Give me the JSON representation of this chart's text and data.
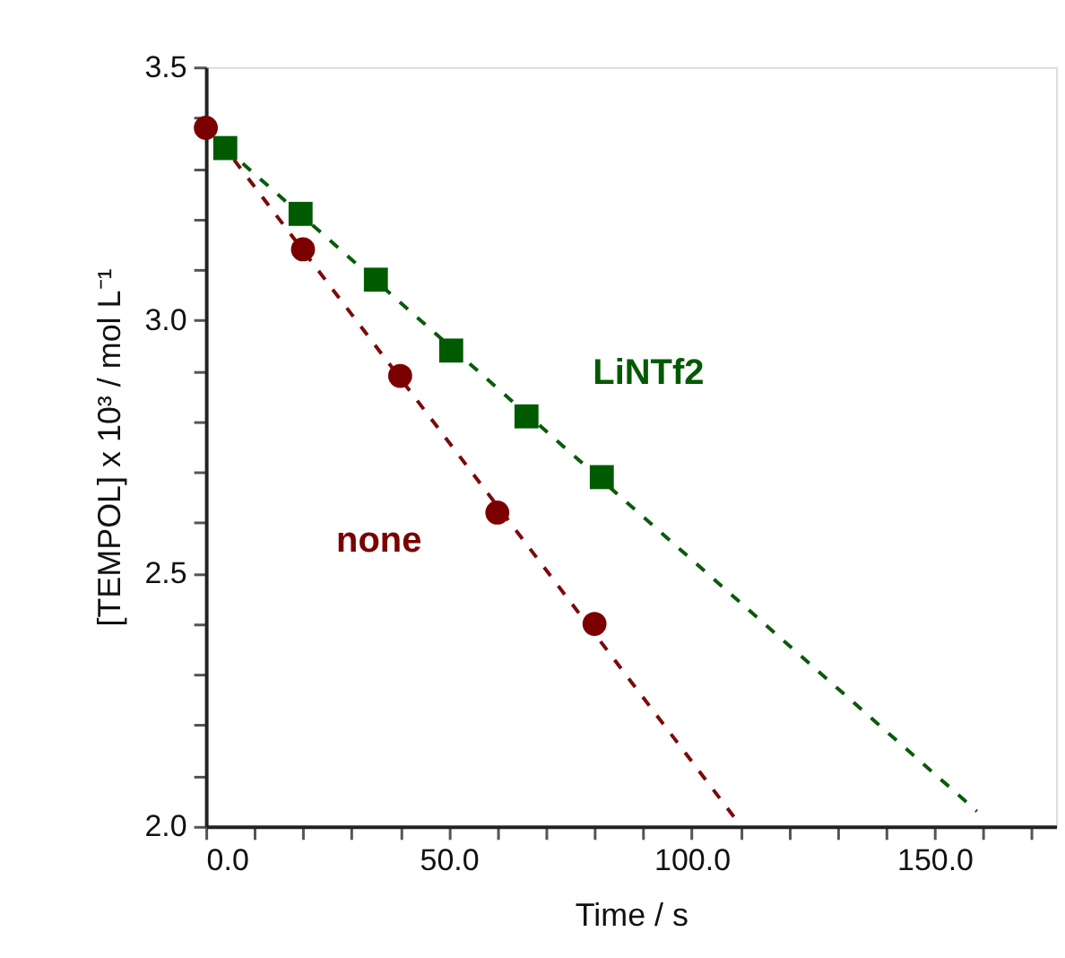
{
  "chart_data": {
    "type": "scatter",
    "xlabel": "Time / s",
    "ylabel": "[TEMPOL] x 10³ / mol L⁻¹",
    "xlim": [
      0,
      175
    ],
    "ylim": [
      2.0,
      3.5
    ],
    "xticks": [
      {
        "value": 0,
        "label": "0.0"
      },
      {
        "value": 10,
        "label": null
      },
      {
        "value": 20,
        "label": null
      },
      {
        "value": 30,
        "label": null
      },
      {
        "value": 40,
        "label": null
      },
      {
        "value": 50,
        "label": "50.0"
      },
      {
        "value": 60,
        "label": null
      },
      {
        "value": 70,
        "label": null
      },
      {
        "value": 80,
        "label": null
      },
      {
        "value": 90,
        "label": null
      },
      {
        "value": 100,
        "label": "100.0"
      },
      {
        "value": 110,
        "label": null
      },
      {
        "value": 120,
        "label": null
      },
      {
        "value": 130,
        "label": null
      },
      {
        "value": 140,
        "label": null
      },
      {
        "value": 150,
        "label": "150.0"
      },
      {
        "value": 160,
        "label": null
      },
      {
        "value": 170,
        "label": null
      }
    ],
    "yticks": [
      {
        "value": 2.0,
        "label": "2.0"
      },
      {
        "value": 2.1,
        "label": null
      },
      {
        "value": 2.2,
        "label": null
      },
      {
        "value": 2.3,
        "label": null
      },
      {
        "value": 2.4,
        "label": null
      },
      {
        "value": 2.5,
        "label": "2.5"
      },
      {
        "value": 2.6,
        "label": null
      },
      {
        "value": 2.7,
        "label": null
      },
      {
        "value": 2.8,
        "label": null
      },
      {
        "value": 2.9,
        "label": null
      },
      {
        "value": 3.0,
        "label": "3.0"
      },
      {
        "value": 3.1,
        "label": null
      },
      {
        "value": 3.2,
        "label": null
      },
      {
        "value": 3.3,
        "label": null
      },
      {
        "value": 3.4,
        "label": null
      },
      {
        "value": 3.5,
        "label": "3.5"
      }
    ],
    "grid": false,
    "legend": false,
    "series": [
      {
        "type": "line",
        "color": "#7b0a0a",
        "line_style": "dashed",
        "marker": "none",
        "x": [
          0,
          110.2
        ],
        "values": [
          3.39,
          2.0
        ]
      },
      {
        "type": "line",
        "color": "#0a5a0a",
        "line_style": "dashed",
        "marker": "none",
        "x": [
          4,
          158.7
        ],
        "values": [
          3.34,
          2.03
        ]
      },
      {
        "name": "none",
        "color": "#7b0000",
        "marker": "circle",
        "x": [
          0,
          20,
          40,
          60,
          80
        ],
        "values": [
          3.38,
          3.14,
          2.89,
          2.62,
          2.4
        ]
      },
      {
        "name": "LiNTf2",
        "color": "#005a00",
        "marker": "square",
        "x": [
          4,
          19.5,
          35,
          50.5,
          66,
          81.5
        ],
        "values": [
          3.34,
          3.21,
          3.08,
          2.94,
          2.81,
          2.69
        ]
      }
    ]
  }
}
